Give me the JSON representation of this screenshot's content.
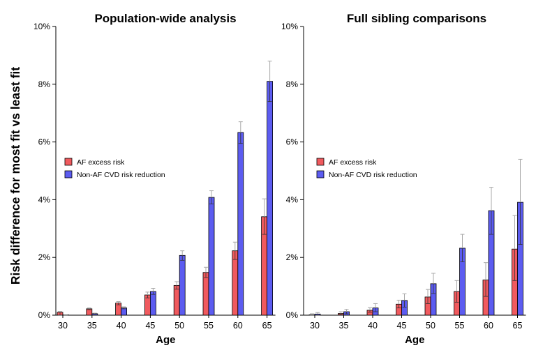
{
  "figure": {
    "ylabel": "Risk difference for most fit vs least fit"
  },
  "chart_data": [
    {
      "type": "bar",
      "title": "Population-wide analysis",
      "xlabel": "Age",
      "categories": [
        "30",
        "35",
        "40",
        "45",
        "50",
        "55",
        "60",
        "65"
      ],
      "ylim": [
        0,
        10
      ],
      "yticks": [
        "0%",
        "2%",
        "4%",
        "6%",
        "8%",
        "10%"
      ],
      "unit": "%",
      "legend_position": "middle-left",
      "series": [
        {
          "name": "AF excess risk",
          "color": "#f05a5e",
          "values": [
            0.1,
            0.22,
            0.42,
            0.7,
            1.03,
            1.48,
            2.23,
            3.41
          ],
          "err_low": [
            0.0,
            0.19,
            0.36,
            0.6,
            0.9,
            1.3,
            1.93,
            2.8
          ],
          "err_high": [
            0.13,
            0.25,
            0.47,
            0.8,
            1.16,
            1.66,
            2.53,
            4.03
          ]
        },
        {
          "name": "Non-AF CVD risk reduction",
          "color": "#5c5cf0",
          "values": [
            0.0,
            0.05,
            0.25,
            0.82,
            2.07,
            4.08,
            6.33,
            8.1
          ],
          "err_low": [
            0.0,
            0.04,
            0.22,
            0.72,
            1.9,
            3.85,
            5.95,
            7.4
          ],
          "err_high": [
            0.01,
            0.07,
            0.29,
            0.93,
            2.23,
            4.31,
            6.7,
            8.8
          ]
        }
      ]
    },
    {
      "type": "bar",
      "title": "Full sibling comparisons",
      "xlabel": "Age",
      "categories": [
        "30",
        "35",
        "40",
        "45",
        "50",
        "55",
        "60",
        "65"
      ],
      "ylim": [
        0,
        10
      ],
      "yticks": [
        "0%",
        "2%",
        "4%",
        "6%",
        "8%",
        "10%"
      ],
      "unit": "%",
      "legend_position": "middle-left",
      "series": [
        {
          "name": "AF excess risk",
          "color": "#f05a5e",
          "values": [
            0.01,
            0.06,
            0.17,
            0.38,
            0.63,
            0.82,
            1.22,
            2.29
          ],
          "err_low": [
            0.0,
            0.02,
            0.1,
            0.25,
            0.4,
            0.45,
            0.65,
            1.2
          ],
          "err_high": [
            0.05,
            0.12,
            0.26,
            0.52,
            0.89,
            1.2,
            1.82,
            3.45
          ]
        },
        {
          "name": "Non-AF CVD risk reduction",
          "color": "#5c5cf0",
          "values": [
            0.04,
            0.12,
            0.25,
            0.51,
            1.09,
            2.32,
            3.62,
            3.91
          ],
          "err_low": [
            0.0,
            0.05,
            0.12,
            0.28,
            0.75,
            1.85,
            2.8,
            2.45
          ],
          "err_high": [
            0.09,
            0.2,
            0.4,
            0.74,
            1.45,
            2.8,
            4.43,
            5.4
          ]
        }
      ]
    }
  ]
}
